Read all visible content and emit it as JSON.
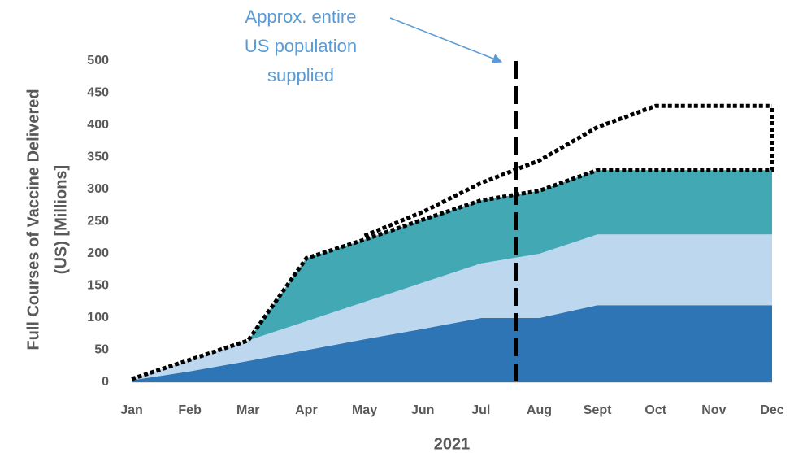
{
  "chart_data": {
    "type": "stacked_area",
    "xlabel": "2021",
    "ylabel": [
      "Full Courses of Vaccine Delivered",
      "(US) [Millions]"
    ],
    "categories": [
      "Jan",
      "Feb",
      "Mar",
      "Apr",
      "May",
      "Jun",
      "Jul",
      "Aug",
      "Sept",
      "Oct",
      "Nov",
      "Dec"
    ],
    "series": [
      {
        "color": "#2e75b6",
        "values": [
          3,
          17,
          33,
          50,
          67,
          83,
          100,
          100,
          120,
          120,
          120,
          120
        ]
      },
      {
        "color": "#bdd7ee",
        "values": [
          2,
          18,
          32,
          45,
          58,
          72,
          85,
          100,
          110,
          110,
          110,
          110
        ]
      },
      {
        "color": "#41a8b4",
        "values": [
          0,
          0,
          0,
          98,
          97,
          98,
          98,
          98,
          100,
          100,
          100,
          100
        ]
      }
    ],
    "projection": {
      "color": "#000000",
      "values": [
        null,
        null,
        null,
        null,
        228,
        265,
        310,
        345,
        397,
        430,
        430,
        430
      ]
    },
    "ylim": [
      0,
      500
    ],
    "yticks": [
      0,
      50,
      100,
      150,
      200,
      250,
      300,
      350,
      400,
      450,
      500
    ],
    "marker": {
      "x": 6.6,
      "color": "#000000"
    },
    "annotation": {
      "lines": [
        "Approx. entire",
        "US population",
        "supplied"
      ],
      "color": "#5b9bd5"
    }
  }
}
